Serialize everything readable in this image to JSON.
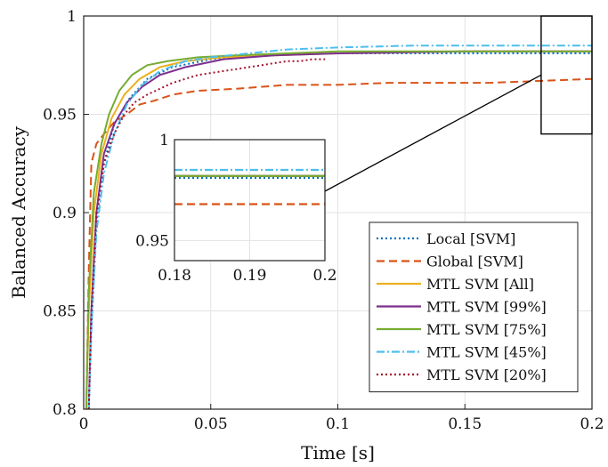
{
  "chart_data": {
    "type": "line",
    "xlabel": "Time [s]",
    "ylabel": "Balanced Accuracy",
    "xlim": [
      0,
      0.2
    ],
    "ylim": [
      0.8,
      1.0
    ],
    "xticks": [
      "0",
      "0.05",
      "0.1",
      "0.15",
      "0.2"
    ],
    "yticks": [
      "0.8",
      "0.85",
      "0.9",
      "0.95",
      "1"
    ],
    "grid": true,
    "legend_position": "bottom-right",
    "series": [
      {
        "name": "Local [SVM]",
        "color": "#0072BD",
        "dash": "dotted",
        "x": [
          0.002,
          0.003,
          0.005,
          0.008,
          0.012,
          0.018,
          0.025,
          0.035,
          0.05,
          0.07,
          0.1,
          0.13,
          0.16,
          0.2
        ],
        "y": [
          0.8,
          0.84,
          0.895,
          0.925,
          0.945,
          0.958,
          0.968,
          0.974,
          0.978,
          0.98,
          0.981,
          0.981,
          0.981,
          0.981
        ]
      },
      {
        "name": "Global [SVM]",
        "color": "#D95319",
        "dash": "dashed",
        "x": [
          0.001,
          0.002,
          0.003,
          0.005,
          0.008,
          0.012,
          0.017,
          0.022,
          0.028,
          0.035,
          0.045,
          0.06,
          0.08,
          0.1,
          0.12,
          0.14,
          0.16,
          0.18,
          0.2
        ],
        "y": [
          0.8,
          0.87,
          0.925,
          0.935,
          0.94,
          0.946,
          0.95,
          0.955,
          0.957,
          0.96,
          0.962,
          0.963,
          0.965,
          0.965,
          0.966,
          0.966,
          0.966,
          0.967,
          0.968
        ]
      },
      {
        "name": "MTL SVM [All]",
        "color": "#EDB120",
        "dash": "solid",
        "x": [
          0.001,
          0.002,
          0.004,
          0.007,
          0.011,
          0.016,
          0.022,
          0.03,
          0.04,
          0.055,
          0.075,
          0.1,
          0.15,
          0.2
        ],
        "y": [
          0.8,
          0.85,
          0.9,
          0.93,
          0.948,
          0.96,
          0.968,
          0.974,
          0.977,
          0.979,
          0.98,
          0.981,
          0.982,
          0.982
        ]
      },
      {
        "name": "MTL SVM [99%]",
        "color": "#7E2F8E",
        "dash": "solid",
        "x": [
          0.002,
          0.003,
          0.005,
          0.008,
          0.012,
          0.017,
          0.023,
          0.03,
          0.04,
          0.055,
          0.075,
          0.1,
          0.15,
          0.2
        ],
        "y": [
          0.8,
          0.85,
          0.9,
          0.93,
          0.945,
          0.956,
          0.964,
          0.97,
          0.974,
          0.978,
          0.98,
          0.981,
          0.982,
          0.982
        ]
      },
      {
        "name": "MTL SVM [75%]",
        "color": "#77AC30",
        "dash": "solid",
        "x": [
          0.001,
          0.002,
          0.004,
          0.007,
          0.01,
          0.014,
          0.019,
          0.025,
          0.033,
          0.045,
          0.06,
          0.08,
          0.1,
          0.15,
          0.2
        ],
        "y": [
          0.8,
          0.86,
          0.91,
          0.935,
          0.95,
          0.962,
          0.97,
          0.975,
          0.977,
          0.979,
          0.98,
          0.981,
          0.982,
          0.982,
          0.982
        ]
      },
      {
        "name": "MTL SVM [45%]",
        "color": "#4DBEEE",
        "dash": "dashdot",
        "x": [
          0.002,
          0.003,
          0.005,
          0.008,
          0.012,
          0.017,
          0.023,
          0.03,
          0.04,
          0.05,
          0.065,
          0.08,
          0.1,
          0.13,
          0.16,
          0.2
        ],
        "y": [
          0.8,
          0.84,
          0.89,
          0.92,
          0.94,
          0.955,
          0.965,
          0.972,
          0.977,
          0.979,
          0.981,
          0.983,
          0.984,
          0.985,
          0.985,
          0.985
        ]
      },
      {
        "name": "MTL SVM [20%]",
        "color": "#A2142F",
        "dash": "dotted",
        "x": [
          0.002,
          0.003,
          0.005,
          0.008,
          0.012,
          0.016,
          0.02,
          0.025,
          0.03,
          0.035,
          0.04,
          0.045,
          0.05,
          0.055,
          0.06,
          0.065,
          0.07,
          0.075,
          0.08,
          0.085,
          0.09,
          0.095
        ],
        "y": [
          0.8,
          0.85,
          0.9,
          0.925,
          0.94,
          0.95,
          0.956,
          0.96,
          0.963,
          0.966,
          0.968,
          0.97,
          0.971,
          0.972,
          0.973,
          0.974,
          0.975,
          0.976,
          0.977,
          0.977,
          0.978,
          0.978
        ]
      }
    ],
    "inset": {
      "xlim": [
        0.18,
        0.2
      ],
      "ylim": [
        0.94,
        1.0
      ],
      "xticks": [
        "0.18",
        "0.19",
        "0.2"
      ],
      "yticks": [
        "0.95",
        "1"
      ],
      "zoom_box": {
        "x": [
          0.18,
          0.2
        ],
        "y": [
          0.94,
          1.0
        ]
      }
    }
  }
}
